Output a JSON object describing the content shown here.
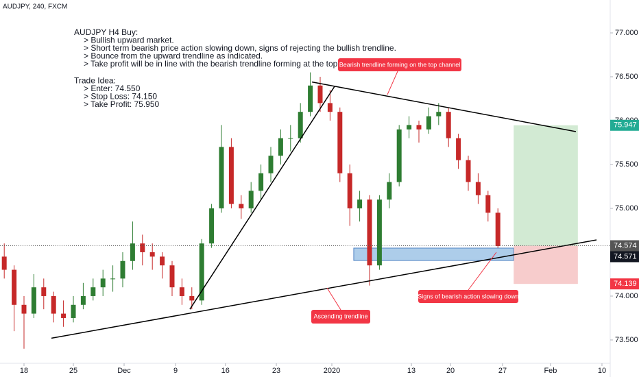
{
  "chart_data": {
    "type": "candlestick",
    "title": "AUDJPY, 240, FXCM",
    "up_color": "#2e7d32",
    "down_color": "#c62828",
    "x": [
      -2,
      -1,
      0,
      1,
      2,
      3,
      4,
      5,
      6,
      7,
      8,
      9,
      10,
      11,
      12,
      13,
      14,
      15,
      16,
      17,
      18,
      19,
      20,
      21,
      22,
      23,
      24,
      25,
      26,
      27,
      28,
      29,
      30,
      31,
      32,
      33,
      34,
      35,
      36,
      37,
      38,
      39,
      40,
      41,
      42,
      43,
      44,
      45,
      46,
      47,
      48
    ],
    "open": [
      74.45,
      74.3,
      73.9,
      73.8,
      74.1,
      74.0,
      73.8,
      73.75,
      73.9,
      74.0,
      74.1,
      74.2,
      74.2,
      74.4,
      74.6,
      74.5,
      74.45,
      74.35,
      74.1,
      74.0,
      73.95,
      74.6,
      75.0,
      75.7,
      75.05,
      75.0,
      75.2,
      75.4,
      75.6,
      75.8,
      75.8,
      76.1,
      76.4,
      76.2,
      76.1,
      75.4,
      75.0,
      75.1,
      74.35,
      75.1,
      75.3,
      75.9,
      75.95,
      75.9,
      76.05,
      76.1,
      75.8,
      75.55,
      75.3,
      75.15,
      74.95
    ],
    "high": [
      74.6,
      74.35,
      74.0,
      74.25,
      74.2,
      74.05,
      73.95,
      74.0,
      74.15,
      74.2,
      74.3,
      74.35,
      74.5,
      74.85,
      74.7,
      74.6,
      74.5,
      74.4,
      74.2,
      74.1,
      74.65,
      75.05,
      75.95,
      75.8,
      75.15,
      75.3,
      75.5,
      75.7,
      75.9,
      75.95,
      76.2,
      76.55,
      76.5,
      76.35,
      76.15,
      75.5,
      75.2,
      75.15,
      75.15,
      75.4,
      75.95,
      76.05,
      76.0,
      76.15,
      76.2,
      76.15,
      75.85,
      75.6,
      75.4,
      75.2,
      75.0
    ],
    "low": [
      74.2,
      73.6,
      73.4,
      73.75,
      73.85,
      73.7,
      73.65,
      73.7,
      73.85,
      73.95,
      74.0,
      74.05,
      74.1,
      74.3,
      74.35,
      74.3,
      74.2,
      74.0,
      73.9,
      73.85,
      73.9,
      74.55,
      74.95,
      75.0,
      74.88,
      74.95,
      75.1,
      75.3,
      75.5,
      75.65,
      75.75,
      76.05,
      76.1,
      76.0,
      75.3,
      74.8,
      74.85,
      74.12,
      74.3,
      75.0,
      75.25,
      75.8,
      75.75,
      75.85,
      75.95,
      75.7,
      75.45,
      75.2,
      75.05,
      74.85,
      74.55
    ],
    "close": [
      74.3,
      73.9,
      73.8,
      74.1,
      74.0,
      73.8,
      73.75,
      73.9,
      74.0,
      74.1,
      74.2,
      74.2,
      74.4,
      74.6,
      74.5,
      74.45,
      74.35,
      74.1,
      74.0,
      73.95,
      74.6,
      75.0,
      75.7,
      75.05,
      75.0,
      75.2,
      75.4,
      75.6,
      75.8,
      75.8,
      76.1,
      76.4,
      76.2,
      76.1,
      75.4,
      75.0,
      75.1,
      74.35,
      75.1,
      75.3,
      75.9,
      75.95,
      75.9,
      76.05,
      76.1,
      75.8,
      75.55,
      75.3,
      75.15,
      74.95,
      74.57
    ],
    "xlim": [
      -2.43,
      59.375
    ],
    "xticks": [
      {
        "value": 0,
        "label": "18"
      },
      {
        "value": 5,
        "label": "25"
      },
      {
        "value": 10.14,
        "label": "Dec"
      },
      {
        "value": 15.35,
        "label": "9"
      },
      {
        "value": 20.4,
        "label": "16"
      },
      {
        "value": 25.56,
        "label": "23"
      },
      {
        "value": 31.18,
        "label": "2020"
      },
      {
        "value": 39.24,
        "label": "13"
      },
      {
        "value": 43.2,
        "label": "20"
      },
      {
        "value": 48.47,
        "label": "27"
      },
      {
        "value": 53.33,
        "label": "Feb"
      },
      {
        "value": 58.54,
        "label": "10"
      }
    ],
    "ylim": [
      73.234,
      77.375
    ],
    "yticks": [
      {
        "value": 73.5,
        "label": "73.500"
      },
      {
        "value": 74,
        "label": "74.000"
      },
      {
        "value": 74.5,
        "label": "74.500"
      },
      {
        "value": 75,
        "label": "75.000"
      },
      {
        "value": 75.5,
        "label": "75.500"
      },
      {
        "value": 76,
        "label": "76.000"
      },
      {
        "value": 76.5,
        "label": "76.500"
      },
      {
        "value": 77,
        "label": "77.000"
      }
    ],
    "zones": [
      {
        "x": [
          33.4,
          49.6
        ],
        "low": 74.406,
        "high": 74.547,
        "color": "#5b9bd5"
      },
      {
        "x": [
          49.6,
          56.1
        ],
        "low": 74.574,
        "high": 75.947,
        "color": "#a5d6a7"
      },
      {
        "x": [
          49.6,
          56.1
        ],
        "low": 74.139,
        "high": 74.574,
        "color": "#ef9a9a"
      }
    ],
    "trendlines": [
      {
        "x": [
          29.17,
          55.9
        ],
        "y": [
          76.44,
          75.875
        ]
      },
      {
        "x": [
          2.78,
          57.99
        ],
        "y": [
          73.52,
          74.64
        ]
      },
      {
        "x": [
          16.8,
          31.46
        ],
        "y": [
          73.85,
          76.39
        ]
      }
    ],
    "price_labels": [
      {
        "value": 75.947,
        "color": "#22ab94"
      },
      {
        "value": 74.574,
        "color": "#555555"
      },
      {
        "value": 74.571,
        "color": "#131722"
      },
      {
        "value": 74.139,
        "color": "#f23645"
      }
    ],
    "note_sections": [
      {
        "heading": "AUDJPY H4 Buy:",
        "items": [
          "> Bullish upward market.",
          "> Short term bearish price action slowing down, signs of rejecting the bullish trendline.",
          "> Bounce from the upward trendline as indicated.",
          "> Take profit will be in line with the bearish trendline forming at the top."
        ]
      },
      {
        "heading": "Trade Idea:",
        "items": [
          "> Enter: 74.550",
          "> Stop Loss: 74.150",
          "> Take Profit: 75.950"
        ]
      }
    ],
    "annotations": [
      "Bearish trendline forming on the top channel",
      "Ascending trendline",
      "Signs of bearish action slowing down"
    ]
  }
}
